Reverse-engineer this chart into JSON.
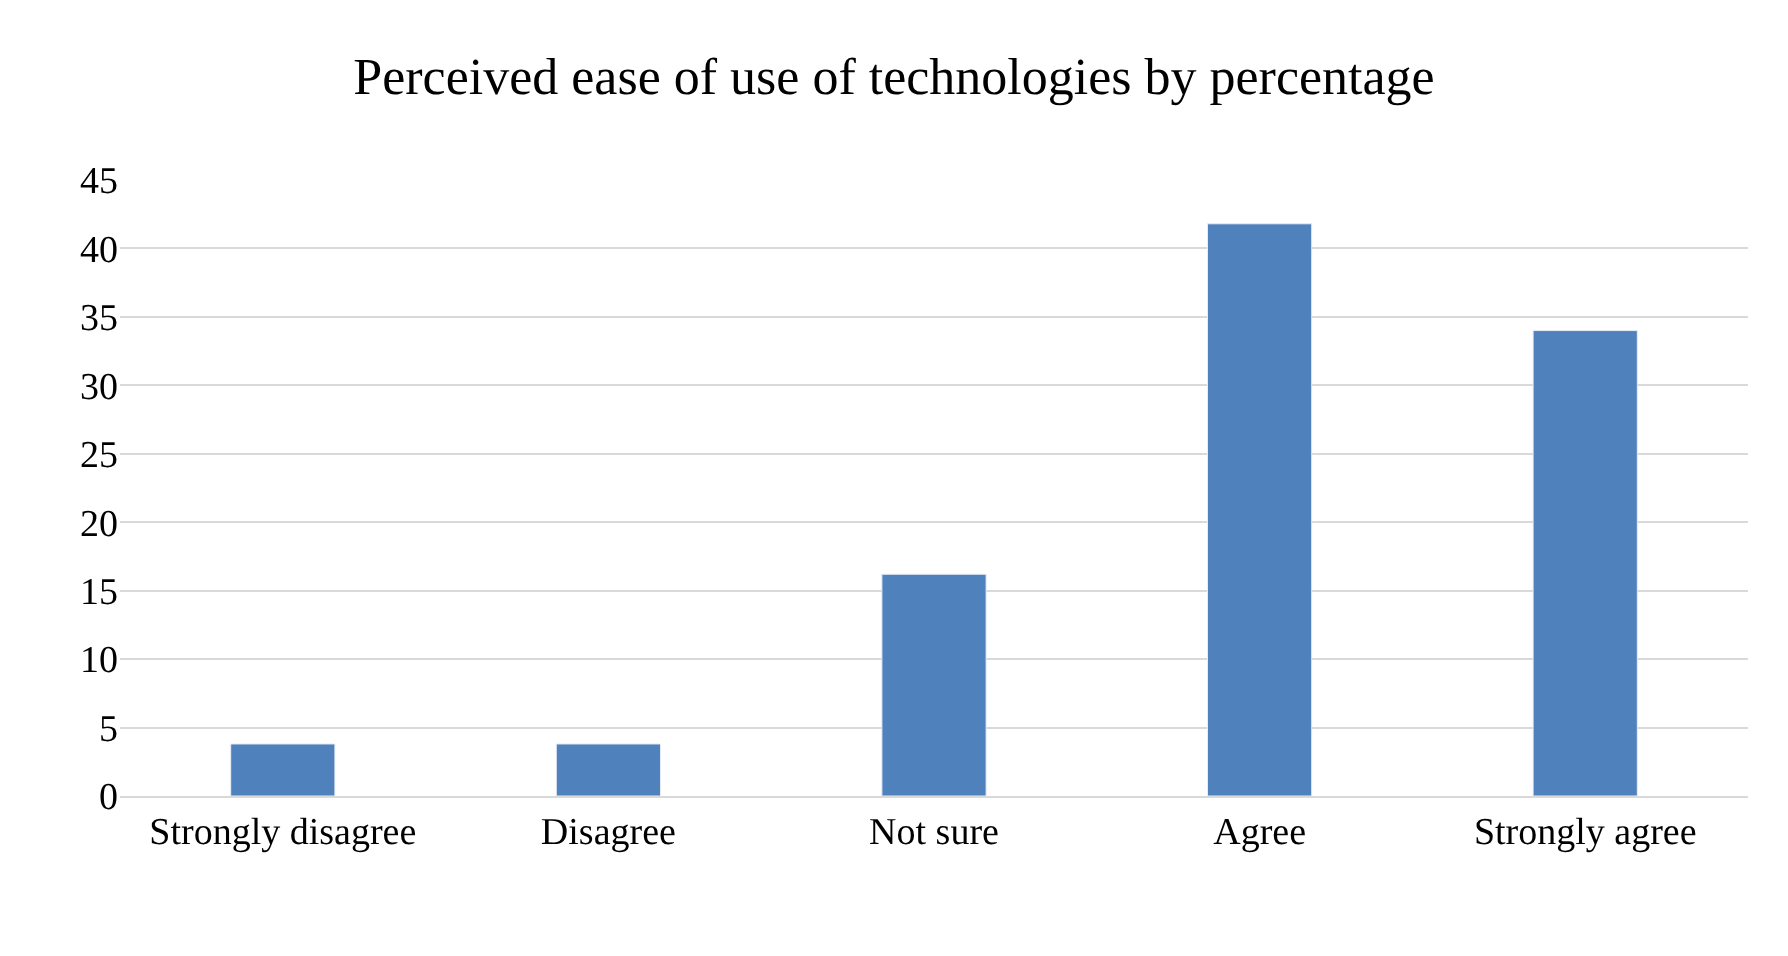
{
  "chart_data": {
    "type": "bar",
    "title": "Perceived ease of use of technologies by percentage",
    "categories": [
      "Strongly disagree",
      "Disagree",
      "Not sure",
      "Agree",
      "Strongly agree"
    ],
    "values": [
      3.8,
      3.8,
      16.2,
      41.8,
      34
    ],
    "color": "#4f81bd",
    "ylim": [
      0,
      45
    ],
    "yticks": [
      0,
      5,
      10,
      15,
      20,
      25,
      30,
      35,
      40,
      45
    ],
    "grid": "y",
    "legend": false
  }
}
